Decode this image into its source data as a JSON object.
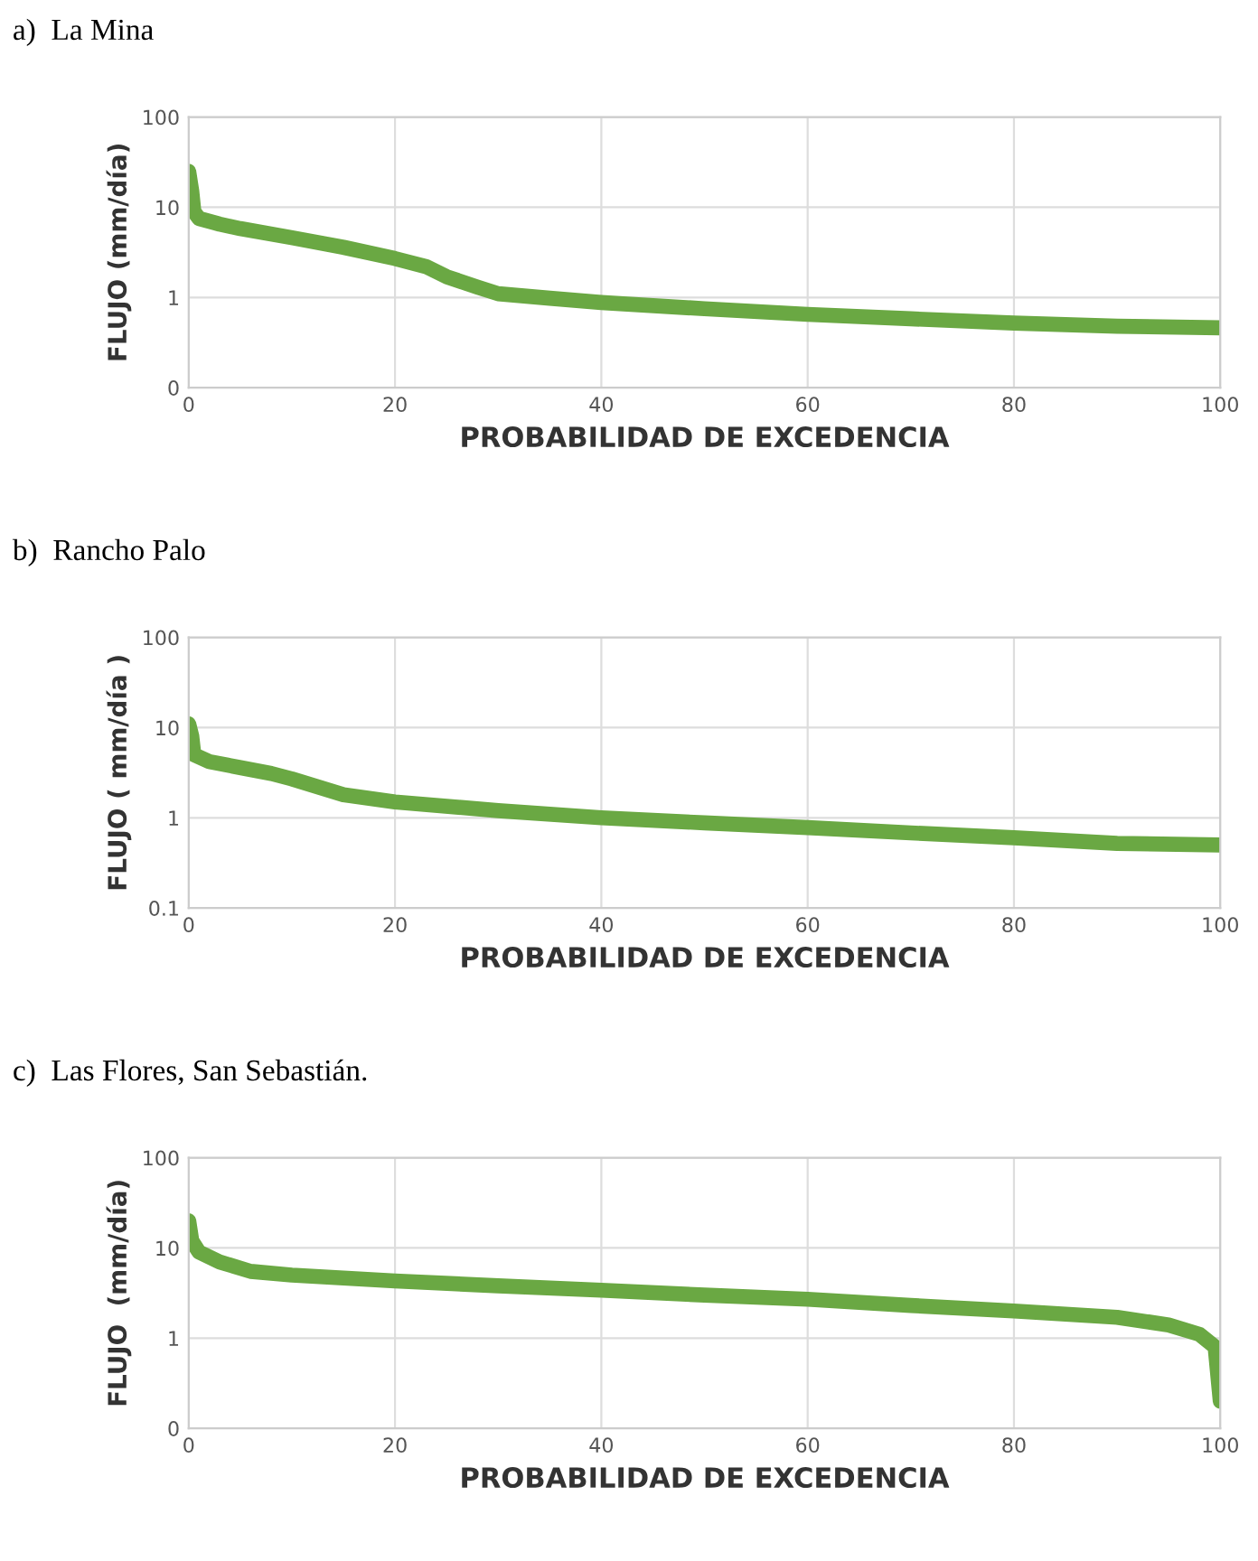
{
  "chart_data": [
    {
      "type": "line",
      "title": "a)  La Mina",
      "xlabel": "PROBABILIDAD DE EXCEDENCIA",
      "ylabel": "FLUJO (mm/día)",
      "log": "y",
      "grid": true,
      "marker": "none",
      "line_style": "solid",
      "xlim": [
        0,
        100
      ],
      "xticks": [
        0,
        20,
        40,
        60,
        80,
        100
      ],
      "ylim": [
        0.1,
        100
      ],
      "yticks": [
        {
          "value": 0.1,
          "label": "0"
        },
        1,
        10,
        100
      ],
      "series": [
        {
          "color": "#6aa843",
          "x": [
            0,
            0.3,
            0.5,
            1,
            3,
            5,
            10,
            15,
            20,
            23,
            25,
            28,
            30,
            35,
            40,
            50,
            60,
            70,
            80,
            90,
            100
          ],
          "values": [
            25,
            15,
            9,
            7.5,
            6.5,
            5.8,
            4.6,
            3.6,
            2.7,
            2.2,
            1.7,
            1.3,
            1.1,
            0.98,
            0.88,
            0.75,
            0.65,
            0.58,
            0.52,
            0.48,
            0.46
          ]
        }
      ]
    },
    {
      "type": "line",
      "title": "b)  Rancho Palo",
      "xlabel": "PROBABILIDAD DE EXCEDENCIA",
      "ylabel": "FLUJO ( mm/día )",
      "log": "y",
      "grid": true,
      "marker": "none",
      "line_style": "solid",
      "xlim": [
        0,
        100
      ],
      "xticks": [
        0,
        20,
        40,
        60,
        80,
        100
      ],
      "ylim": [
        0.1,
        100
      ],
      "yticks": [
        0.1,
        1,
        10,
        100
      ],
      "series": [
        {
          "color": "#6aa843",
          "x": [
            0,
            0.3,
            0.5,
            2,
            5,
            8,
            10,
            15,
            20,
            30,
            40,
            50,
            60,
            70,
            80,
            90,
            100
          ],
          "values": [
            11,
            8,
            5,
            4.2,
            3.6,
            3.1,
            2.7,
            1.8,
            1.5,
            1.2,
            1.0,
            0.88,
            0.78,
            0.68,
            0.6,
            0.52,
            0.5
          ]
        }
      ]
    },
    {
      "type": "line",
      "title": "c)  Las Flores, San Sebastián.",
      "xlabel": "PROBABILIDAD DE EXCEDENCIA",
      "ylabel": "FLUJO  (mm/día)",
      "log": "y",
      "grid": true,
      "marker": "none",
      "line_style": "solid",
      "xlim": [
        0,
        100
      ],
      "xticks": [
        0,
        20,
        40,
        60,
        80,
        100
      ],
      "ylim": [
        0.1,
        100
      ],
      "yticks": [
        {
          "value": 0.1,
          "label": "0"
        },
        1,
        10,
        100
      ],
      "series": [
        {
          "color": "#6aa843",
          "x": [
            0,
            0.3,
            1,
            3,
            6,
            10,
            20,
            30,
            40,
            50,
            60,
            70,
            80,
            90,
            95,
            98,
            99.5,
            100
          ],
          "values": [
            20,
            12,
            9,
            7,
            5.5,
            5.0,
            4.3,
            3.8,
            3.4,
            3.0,
            2.7,
            2.3,
            2.0,
            1.7,
            1.4,
            1.1,
            0.8,
            0.2
          ]
        }
      ]
    }
  ]
}
